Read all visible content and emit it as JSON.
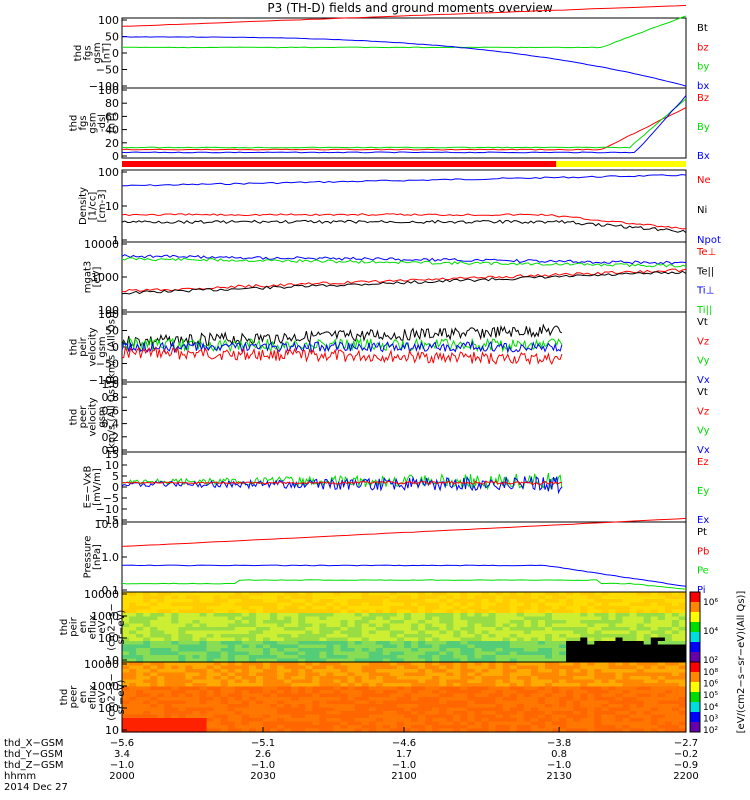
{
  "title": "P3 (TH-D) fields and ground moments overview",
  "colors": {
    "black": "#000000",
    "red": "#ff0000",
    "green": "#00dd00",
    "blue": "#0000ff",
    "yellow": "#ffff00"
  },
  "chart_data": [
    {
      "id": "fgs_gsm",
      "type": "line",
      "ylabel": [
        "thd",
        "fgs",
        "gsm",
        "[nT]"
      ],
      "ylim": [
        -100,
        100
      ],
      "yticks": [
        "100",
        "50",
        "0",
        "−50",
        "−100"
      ],
      "legend": [
        {
          "label": "Bt",
          "color": "black"
        },
        {
          "label": "bz",
          "color": "red"
        },
        {
          "label": "by",
          "color": "green"
        },
        {
          "label": "bx",
          "color": "blue"
        }
      ]
    },
    {
      "id": "fgs_dsl",
      "type": "line",
      "ylabel": [
        "thd",
        "fgs",
        "gsm",
        "-dsl",
        "[nT]"
      ],
      "ylim": [
        -10,
        100
      ],
      "yticks": [
        "100",
        "80",
        "60",
        "40",
        "20",
        "0"
      ],
      "legend": [
        {
          "label": "Bz",
          "color": "red"
        },
        {
          "label": "By",
          "color": "green"
        },
        {
          "label": "Bx",
          "color": "blue"
        }
      ]
    },
    {
      "id": "flag",
      "type": "bar",
      "segments": [
        {
          "to": 0.77,
          "color": "red"
        },
        {
          "to": 1.0,
          "color": "yellow"
        }
      ]
    },
    {
      "id": "density",
      "type": "line",
      "ylabel": [
        "Density",
        "[1/cc]",
        "[cm-3]"
      ],
      "ylim": [
        0.5,
        200
      ],
      "log": true,
      "yticks": [
        "100",
        "10",
        "1"
      ],
      "legend": [
        {
          "label": "Ne",
          "color": "red"
        },
        {
          "label": "Ni",
          "color": "black"
        },
        {
          "label": "Npot",
          "color": "blue"
        }
      ]
    },
    {
      "id": "temperature",
      "type": "line",
      "ylabel": [
        "mgat3",
        "[eV]"
      ],
      "ylim": [
        50,
        12000
      ],
      "log": true,
      "yticks": [
        "10000",
        "1000",
        "100"
      ],
      "legend": [
        {
          "label": "Te⊥",
          "color": "red"
        },
        {
          "label": "Te||",
          "color": "black"
        },
        {
          "label": "Ti⊥",
          "color": "blue"
        },
        {
          "label": "Ti||",
          "color": "green"
        }
      ]
    },
    {
      "id": "peir_velocity",
      "type": "line",
      "ylabel": [
        "thd",
        "peir",
        "velocity",
        "gsm",
        "[km/s (All Qs)]"
      ],
      "ylim": [
        -100,
        100
      ],
      "yticks": [
        "100",
        "50",
        "0",
        "−50",
        "−100"
      ],
      "legend": [
        {
          "label": "Vt",
          "color": "black"
        },
        {
          "label": "Vz",
          "color": "red"
        },
        {
          "label": "Vy",
          "color": "green"
        },
        {
          "label": "Vx",
          "color": "blue"
        }
      ]
    },
    {
      "id": "peer_velocity",
      "type": "line",
      "ylabel": [
        "thd",
        "peer",
        "velocity",
        "gsm",
        "[km/s (All Qs)]"
      ],
      "ylim": [
        0,
        1
      ],
      "yticks": [
        "1.0",
        "0.8",
        "0.6",
        "0.4",
        "0.2",
        "0.0"
      ],
      "legend": [
        {
          "label": "Vt",
          "color": "black"
        },
        {
          "label": "Vz",
          "color": "red"
        },
        {
          "label": "Vy",
          "color": "green"
        },
        {
          "label": "Vx",
          "color": "blue"
        }
      ]
    },
    {
      "id": "efield",
      "type": "line",
      "ylabel": [
        "E=−VxB",
        "[mV/m]"
      ],
      "ylim": [
        -15,
        15
      ],
      "yticks": [
        "15",
        "10",
        "5",
        "0",
        "−5",
        "−10",
        "−15"
      ],
      "legend": [
        {
          "label": "Ez",
          "color": "red"
        },
        {
          "label": "Ey",
          "color": "green"
        },
        {
          "label": "Ex",
          "color": "blue"
        }
      ]
    },
    {
      "id": "pressure",
      "type": "line",
      "ylabel": [
        "Pressure",
        "[nPa]"
      ],
      "ylim": [
        0.03,
        20
      ],
      "log": true,
      "yticks": [
        "10.0",
        "1.0",
        "0.1"
      ],
      "legend": [
        {
          "label": "Pt",
          "color": "black"
        },
        {
          "label": "Pb",
          "color": "red"
        },
        {
          "label": "Pe",
          "color": "green"
        },
        {
          "label": "Pi",
          "color": "blue"
        }
      ]
    },
    {
      "id": "peir_spec",
      "type": "heatmap",
      "ylabel": [
        "thd",
        "peir",
        "en",
        "eflux",
        "eV",
        "(cm2−s−",
        "sr−eV)"
      ],
      "ylim": [
        7,
        20000
      ],
      "log": true,
      "yticks": [
        "10000",
        "1000",
        "100",
        "10"
      ]
    },
    {
      "id": "peer_spec",
      "type": "heatmap",
      "ylabel": [
        "thd",
        "peer",
        "en",
        "eflux",
        "eV",
        "(cm2−s−",
        "sr−eV)"
      ],
      "ylim": [
        7,
        20000
      ],
      "log": true,
      "yticks": [
        "10000",
        "1000",
        "100",
        "10"
      ]
    }
  ],
  "colorbar": {
    "label": "[eV/(cm2−s−sr−eV)(All Qs)]",
    "ticks_top": [
      "10⁶",
      "10⁴",
      "10²"
    ],
    "ticks_bottom": [
      "10⁸",
      "10⁶",
      "10⁵",
      "10⁴",
      "10³",
      "10²"
    ]
  },
  "xaxis": {
    "rows": [
      {
        "label": "thd_X−GSM",
        "values": [
          "−5.6",
          "−5.1",
          "−4.6",
          "−3.8",
          "−2.7"
        ]
      },
      {
        "label": "thd_Y−GSM",
        "values": [
          "3.4",
          "2.6",
          "1.7",
          "0.8",
          "−0.2"
        ]
      },
      {
        "label": "thd_Z−GSM",
        "values": [
          "−1.0",
          "−1.0",
          "−1.0",
          "−1.0",
          "−0.9"
        ]
      },
      {
        "label": "hhmm",
        "values": [
          "2000",
          "2030",
          "2100",
          "2130",
          "2200"
        ]
      }
    ],
    "date": "2014 Dec 27"
  }
}
